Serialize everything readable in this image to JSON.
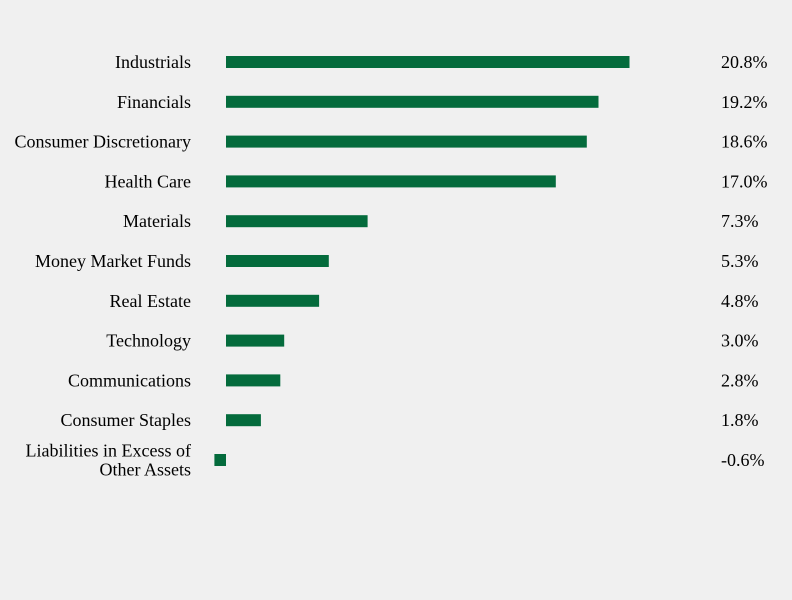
{
  "chart_data": {
    "type": "bar",
    "orientation": "horizontal",
    "categories": [
      "Industrials",
      "Financials",
      "Consumer Discretionary",
      "Health Care",
      "Materials",
      "Money Market Funds",
      "Real Estate",
      "Technology",
      "Communications",
      "Consumer Staples",
      "Liabilities in Excess of Other Assets"
    ],
    "category_lines": [
      [
        "Industrials"
      ],
      [
        "Financials"
      ],
      [
        "Consumer Discretionary"
      ],
      [
        "Health Care"
      ],
      [
        "Materials"
      ],
      [
        "Money Market Funds"
      ],
      [
        "Real Estate"
      ],
      [
        "Technology"
      ],
      [
        "Communications"
      ],
      [
        "Consumer Staples"
      ],
      [
        "Liabilities in Excess of",
        "Other Assets"
      ]
    ],
    "values": [
      20.8,
      19.2,
      18.6,
      17.0,
      7.3,
      5.3,
      4.8,
      3.0,
      2.8,
      1.8,
      -0.6
    ],
    "value_labels": [
      "20.8%",
      "19.2%",
      "18.6%",
      "17.0%",
      "7.3%",
      "5.3%",
      "4.8%",
      "3.0%",
      "2.8%",
      "1.8%",
      "-0.6%"
    ],
    "xlim": [
      -0.6,
      20.8
    ],
    "title": "",
    "xlabel": "",
    "ylabel": "",
    "grid": false,
    "legend": "none",
    "bar_color": "#046b3c",
    "background": "#f0f0f0"
  }
}
